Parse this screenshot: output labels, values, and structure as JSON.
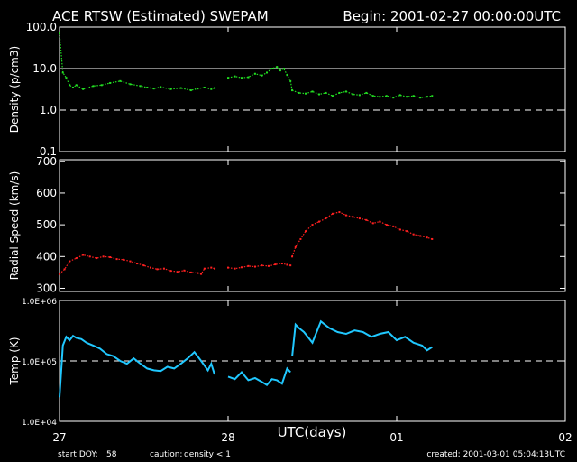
{
  "header": {
    "title": "ACE RTSW (Estimated) SWEPAM",
    "begin": "Begin: 2001-02-27 00:00:00UTC"
  },
  "colors": {
    "density": "#22dd22",
    "speed": "#ff2020",
    "temp": "#20c8ff",
    "caution": "#ffff00",
    "frame": "#ffffff"
  },
  "chart_data": [
    {
      "type": "scatter",
      "ylabel": "Density (p/cm3)",
      "scale": "log",
      "ylim": [
        0.1,
        100
      ],
      "yticks": [
        "100.0",
        "10.0",
        "1.0",
        "0.1"
      ],
      "ytick_values": [
        100,
        10,
        1,
        0.1
      ],
      "reflines": [
        {
          "value": 10,
          "style": "solid"
        },
        {
          "value": 1,
          "style": "dashed"
        }
      ],
      "series": [
        {
          "segments": [
            {
              "x": [
                0.0,
                0.02,
                0.04,
                0.06,
                0.08,
                0.1,
                0.14,
                0.2,
                0.25,
                0.3,
                0.36,
                0.42,
                0.48,
                0.52,
                0.56,
                0.6,
                0.66,
                0.72,
                0.78,
                0.82,
                0.86,
                0.9,
                0.92
              ],
              "y": [
                70,
                8,
                6,
                4,
                3.5,
                4,
                3.2,
                3.8,
                4,
                4.5,
                5,
                4.2,
                3.8,
                3.5,
                3.3,
                3.6,
                3.2,
                3.4,
                3.0,
                3.3,
                3.5,
                3.2,
                3.4
              ]
            },
            {
              "x": [
                1.0,
                1.04,
                1.08,
                1.12,
                1.16,
                1.2,
                1.23,
                1.26,
                1.29,
                1.31,
                1.33,
                1.35,
                1.37,
                1.38
              ],
              "y": [
                6,
                6.5,
                6,
                6.2,
                7.5,
                6.8,
                8,
                10,
                11,
                9,
                10,
                7,
                5,
                3
              ]
            },
            {
              "x": [
                1.38,
                1.42,
                1.46,
                1.5,
                1.54,
                1.58,
                1.62,
                1.66,
                1.7,
                1.74,
                1.78,
                1.82,
                1.86,
                1.9,
                1.94,
                1.98,
                2.02,
                2.06,
                2.1,
                2.14,
                2.18,
                2.21
              ],
              "y": [
                3,
                2.6,
                2.5,
                2.8,
                2.4,
                2.6,
                2.2,
                2.6,
                2.8,
                2.4,
                2.3,
                2.6,
                2.2,
                2.1,
                2.2,
                2.0,
                2.3,
                2.1,
                2.2,
                2.0,
                2.1,
                2.2
              ]
            }
          ]
        }
      ]
    },
    {
      "type": "scatter",
      "ylabel": "Radial Speed (km/s)",
      "scale": "linear",
      "ylim": [
        290,
        705
      ],
      "yticks": [
        "700",
        "600",
        "500",
        "400",
        "300"
      ],
      "ytick_values": [
        700,
        600,
        500,
        400,
        300
      ],
      "series": [
        {
          "segments": [
            {
              "x": [
                0.0,
                0.03,
                0.06,
                0.1,
                0.14,
                0.18,
                0.22,
                0.26,
                0.3,
                0.34,
                0.38,
                0.42,
                0.46,
                0.5,
                0.54,
                0.58,
                0.62,
                0.66,
                0.7,
                0.74,
                0.78,
                0.82,
                0.84,
                0.86,
                0.9,
                0.92
              ],
              "y": [
                345,
                360,
                385,
                395,
                405,
                400,
                395,
                400,
                398,
                392,
                390,
                385,
                378,
                372,
                365,
                360,
                362,
                355,
                352,
                356,
                350,
                348,
                345,
                362,
                365,
                362
              ]
            },
            {
              "x": [
                1.0,
                1.04,
                1.08,
                1.12,
                1.16,
                1.2,
                1.24,
                1.28,
                1.32,
                1.35,
                1.37
              ],
              "y": [
                365,
                362,
                366,
                370,
                368,
                372,
                370,
                375,
                378,
                374,
                372
              ]
            },
            {
              "x": [
                1.38,
                1.4,
                1.43,
                1.46,
                1.5,
                1.54,
                1.58,
                1.62,
                1.66,
                1.7,
                1.74,
                1.78,
                1.82,
                1.86,
                1.9,
                1.94,
                1.98,
                2.02,
                2.06,
                2.1,
                2.14,
                2.18,
                2.21
              ],
              "y": [
                400,
                430,
                455,
                480,
                500,
                510,
                520,
                535,
                540,
                530,
                525,
                520,
                515,
                505,
                510,
                500,
                495,
                485,
                480,
                470,
                465,
                460,
                455
              ]
            }
          ]
        }
      ]
    },
    {
      "type": "line",
      "ylabel": "Temp (K)",
      "scale": "log",
      "ylim": [
        10000,
        1000000
      ],
      "yticks": [
        "1.0E+06",
        "1.0E+05",
        "1.0E+04"
      ],
      "ytick_values": [
        1000000,
        100000,
        10000
      ],
      "reflines": [
        {
          "value": 100000,
          "style": "dashed"
        }
      ],
      "series": [
        {
          "segments": [
            {
              "x": [
                0.0,
                0.02,
                0.04,
                0.06,
                0.08,
                0.1,
                0.13,
                0.16,
                0.2,
                0.24,
                0.28,
                0.32,
                0.36,
                0.4,
                0.44,
                0.48,
                0.52,
                0.56,
                0.6,
                0.64,
                0.68,
                0.72,
                0.76,
                0.8,
                0.84,
                0.88,
                0.9,
                0.92
              ],
              "y": [
                25000,
                180000,
                250000,
                220000,
                260000,
                240000,
                230000,
                200000,
                180000,
                160000,
                130000,
                120000,
                100000,
                90000,
                110000,
                90000,
                75000,
                70000,
                68000,
                80000,
                75000,
                90000,
                110000,
                140000,
                100000,
                70000,
                90000,
                60000
              ]
            },
            {
              "x": [
                1.0,
                1.04,
                1.08,
                1.12,
                1.16,
                1.2,
                1.23,
                1.26,
                1.29,
                1.32,
                1.35,
                1.37
              ],
              "y": [
                55000,
                50000,
                65000,
                48000,
                52000,
                45000,
                40000,
                50000,
                48000,
                42000,
                75000,
                65000
              ]
            },
            {
              "x": [
                1.38,
                1.4,
                1.42,
                1.45,
                1.5,
                1.55,
                1.6,
                1.65,
                1.7,
                1.75,
                1.8,
                1.85,
                1.9,
                1.95,
                2.0,
                2.05,
                2.1,
                2.15,
                2.18,
                2.21
              ],
              "y": [
                120000,
                400000,
                350000,
                300000,
                200000,
                450000,
                350000,
                300000,
                280000,
                320000,
                300000,
                250000,
                280000,
                300000,
                220000,
                250000,
                200000,
                180000,
                150000,
                170000
              ]
            }
          ]
        }
      ]
    }
  ],
  "x_axis": {
    "label": "UTC(days)",
    "ticks": [
      "27",
      "28",
      "01",
      "02"
    ],
    "tick_values": [
      0,
      1,
      2,
      3
    ],
    "xlim": [
      0,
      3
    ]
  },
  "footer": {
    "start_doy_label": "start DOY:",
    "start_doy": "58",
    "caution_label": "caution:",
    "caution_text": "density < 1",
    "created": "created: 2001-03-01 05:04:13UTC"
  }
}
